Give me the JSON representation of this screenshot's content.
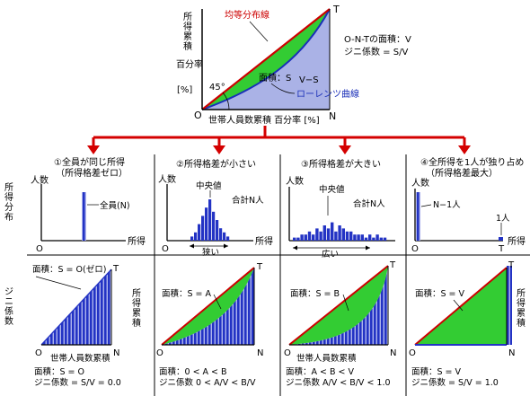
{
  "main": {
    "axis_y_chars": [
      "所",
      "得",
      "累",
      "積"
    ],
    "y_label_2": "百分率",
    "y_label_3": "[%]",
    "x_label": "世帯人員数累積 百分率 [%]",
    "origin": "O",
    "corner_t": "T",
    "corner_n": "N",
    "equality_line_label": "均等分布線",
    "lorenz_label": "ローレンツ曲線",
    "area_s": "面積：S",
    "area_vs": "V−S",
    "angle": "45°",
    "note_1": "O-N-Tの面積：V",
    "note_2": "ジニ係数 = S/V",
    "equality_color": "#cc0000",
    "lorenz_color": "#1a2fb8",
    "area_s_color": "#33cc33",
    "area_vs_color": "#aab2e6"
  },
  "row_label_top_chars": [
    "所",
    "得",
    "分",
    "布"
  ],
  "row_label_bottom_chars": [
    "ジ",
    "ニ",
    "係",
    "数"
  ],
  "cases": [
    {
      "title_1": "①全員が同じ所得",
      "title_2": "（所得格差ゼロ）",
      "dist_y": "人数",
      "dist_x": "所得",
      "dist_o": "O",
      "dist_note": "全員(N)",
      "gini_area": "面積：S = O(ゼロ)",
      "gini_t": "T",
      "gini_n": "N",
      "gini_o": "O",
      "gini_xlabel": "世帯人員数累積",
      "gini_ylabel_chars": [
        "所",
        "得",
        "累",
        "積"
      ],
      "summary_1": "面積：S = O",
      "summary_2": "ジニ係数 = S/V = 0.0"
    },
    {
      "title_1": "②所得格差が小さい",
      "dist_y": "人数",
      "dist_x": "所得",
      "dist_o": "O",
      "dist_center": "中央値",
      "dist_total": "合計N人",
      "dist_range": "狭い",
      "gini_area": "面積：S = A",
      "gini_t": "T",
      "gini_n": "N",
      "gini_o": "O",
      "summary_1": "面積：0 < A < B",
      "summary_2": "ジニ係数 0 < A/V < B/V"
    },
    {
      "title_1": "③所得格差が大きい",
      "dist_y": "人数",
      "dist_x": "所得",
      "dist_o": "O",
      "dist_center": "中央値",
      "dist_total": "合計N人",
      "dist_range": "広い",
      "gini_area": "面積：S = B",
      "gini_t": "T",
      "gini_n": "N",
      "gini_o": "O",
      "gini_xlabel": "世帯人員数累積",
      "summary_1": "面積：A < B < V",
      "summary_2": "ジニ係数 A/V < B/V < 1.0"
    },
    {
      "title_1": "④全所得を1人が独り占め",
      "title_2": "（所得格差最大）",
      "dist_y": "人数",
      "dist_x": "所得",
      "dist_o": "O",
      "dist_t": "T",
      "dist_left": "N−1人",
      "dist_right": "1人",
      "gini_area": "面積：S = V",
      "gini_t": "T",
      "gini_n": "N",
      "gini_o": "O",
      "gini_ylabel_chars": [
        "所",
        "得",
        "累",
        "積"
      ],
      "summary_1": "面積：S = V",
      "summary_2": "ジニ係数 = S/V = 1.0"
    }
  ],
  "case2_hist": [
    1,
    2,
    4,
    6,
    8,
    10,
    7,
    5,
    3,
    2,
    1
  ],
  "case3_hist": [
    1,
    1,
    2,
    2,
    3,
    2,
    4,
    3,
    5,
    4,
    6,
    3,
    5,
    4,
    3,
    3,
    2,
    2,
    2,
    1,
    2,
    1,
    2,
    1,
    1
  ]
}
